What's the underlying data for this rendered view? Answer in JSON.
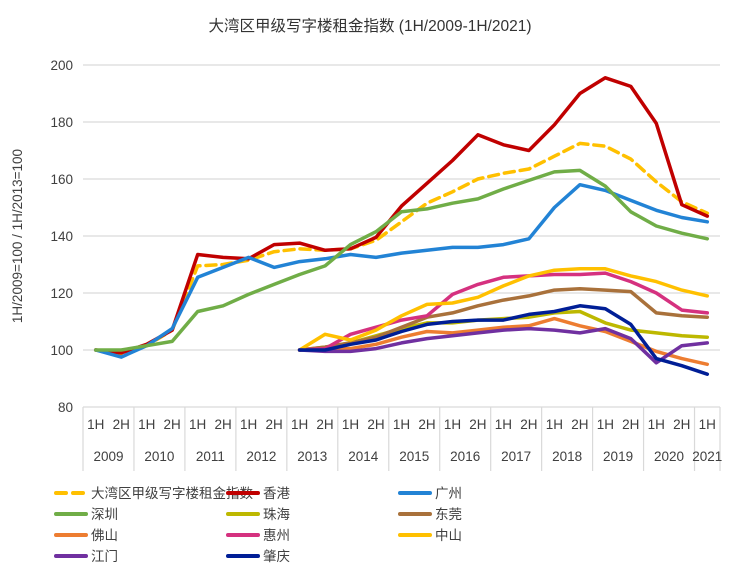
{
  "title": "大湾区甲级写字楼租金指数 (1H/2009-1H/2021)",
  "y_axis_label": "1H/2009=100 / 1H/2013=100",
  "colors": {
    "grid": "#D9D9D9",
    "axis_text": "#404040",
    "background": "#FFFFFF"
  },
  "chart_data": {
    "type": "line",
    "grid": true,
    "legend_position": "bottom",
    "ylim": [
      80,
      200
    ],
    "y_ticks": [
      200,
      180,
      160,
      140,
      120,
      100,
      80
    ],
    "halves": [
      "1H",
      "2H",
      "1H",
      "2H",
      "1H",
      "2H",
      "1H",
      "2H",
      "1H",
      "2H",
      "1H",
      "2H",
      "1H",
      "2H",
      "1H",
      "2H",
      "1H",
      "2H",
      "1H",
      "2H",
      "1H",
      "2H",
      "1H",
      "2H",
      "1H"
    ],
    "years": [
      "2009",
      "2010",
      "2011",
      "2012",
      "2013",
      "2014",
      "2015",
      "2016",
      "2017",
      "2018",
      "2019",
      "2020",
      "2021"
    ],
    "series": [
      {
        "key": "gba",
        "name": "大湾区甲级写字楼租金指数",
        "color": "#FFC000",
        "dashed": true,
        "values": [
          100,
          98.5,
          101.5,
          107,
          129.5,
          130,
          131.5,
          134.5,
          135.5,
          135,
          135.5,
          138.5,
          145,
          151.5,
          155.5,
          160,
          162,
          163.5,
          168,
          172.5,
          171.5,
          167,
          159,
          152,
          148
        ]
      },
      {
        "key": "hongkong",
        "name": "香港",
        "color": "#C00000",
        "dashed": false,
        "values": [
          100,
          99,
          102,
          107,
          133.5,
          132.5,
          132,
          137,
          137.5,
          135,
          135.5,
          139.5,
          150.5,
          158.5,
          166.5,
          175.5,
          172,
          170,
          179,
          190,
          195.5,
          192.5,
          179.5,
          151,
          147
        ]
      },
      {
        "key": "guangzhou",
        "name": "广州",
        "color": "#2283D5",
        "dashed": false,
        "values": [
          100,
          97.5,
          101.5,
          107.5,
          125.5,
          129,
          132.5,
          129,
          131,
          132,
          133.5,
          132.5,
          134,
          135,
          136,
          136,
          137,
          139,
          150,
          158,
          156,
          152.5,
          149,
          146.5,
          145
        ]
      },
      {
        "key": "shenzhen",
        "name": "深圳",
        "color": "#70AD47",
        "dashed": false,
        "values": [
          100,
          100,
          101.5,
          103,
          113.5,
          115.5,
          119.5,
          123,
          126.5,
          129.5,
          137,
          141.5,
          148.5,
          149.5,
          151.5,
          153,
          156.5,
          159.5,
          162.5,
          163,
          157.5,
          148.5,
          143.5,
          141,
          139
        ]
      },
      {
        "key": "zhuhai",
        "name": "珠海",
        "color": "#BDB800",
        "dashed": false,
        "values": [
          null,
          null,
          null,
          null,
          null,
          null,
          null,
          null,
          100,
          101,
          102.5,
          105,
          107.5,
          109.5,
          109.5,
          110.5,
          111,
          111.5,
          113,
          113.5,
          109.5,
          107,
          106,
          105,
          104.5
        ]
      },
      {
        "key": "dongguan",
        "name": "东莞",
        "color": "#A9713B",
        "dashed": false,
        "values": [
          null,
          null,
          null,
          null,
          null,
          null,
          null,
          null,
          100,
          101,
          102.5,
          104.5,
          108,
          111.5,
          113,
          115.5,
          117.5,
          119,
          121,
          121.5,
          121,
          120.5,
          113,
          112,
          111.5
        ]
      },
      {
        "key": "foshan",
        "name": "佛山",
        "color": "#ED7D31",
        "dashed": false,
        "values": [
          null,
          null,
          null,
          null,
          null,
          null,
          null,
          null,
          100,
          100.5,
          100.5,
          102,
          104.5,
          106.5,
          106,
          107,
          108,
          108.5,
          111,
          108.5,
          106.5,
          103,
          99.5,
          97,
          95
        ]
      },
      {
        "key": "huizhou",
        "name": "惠州",
        "color": "#D5317F",
        "dashed": false,
        "values": [
          null,
          null,
          null,
          null,
          null,
          null,
          null,
          null,
          100,
          100.5,
          105.5,
          108,
          110.5,
          112,
          119.5,
          123,
          125.5,
          126,
          126.5,
          126.5,
          127,
          124,
          120,
          114,
          113
        ]
      },
      {
        "key": "zhongshan",
        "name": "中山",
        "color": "#FFC000",
        "dashed": false,
        "values": [
          null,
          null,
          null,
          null,
          null,
          null,
          null,
          null,
          100,
          105.5,
          103.5,
          107,
          112,
          116,
          116.5,
          118.5,
          122.5,
          126,
          128,
          128.5,
          128.5,
          126,
          124,
          121,
          119
        ]
      },
      {
        "key": "jiangmen",
        "name": "江门",
        "color": "#7030A0",
        "dashed": false,
        "values": [
          null,
          null,
          null,
          null,
          null,
          null,
          null,
          null,
          100,
          99.5,
          99.5,
          100.5,
          102.5,
          104,
          105,
          106,
          107,
          107.5,
          107,
          106,
          107.5,
          104,
          95.5,
          101.5,
          102.5
        ]
      },
      {
        "key": "zhaoqing",
        "name": "肇庆",
        "color": "#001E96",
        "dashed": false,
        "values": [
          null,
          null,
          null,
          null,
          null,
          null,
          null,
          null,
          100,
          100,
          102,
          103.5,
          106.5,
          109,
          110,
          110.5,
          110.5,
          112.5,
          113.5,
          115.5,
          114.5,
          109,
          97,
          94.5,
          91.5
        ]
      }
    ]
  }
}
